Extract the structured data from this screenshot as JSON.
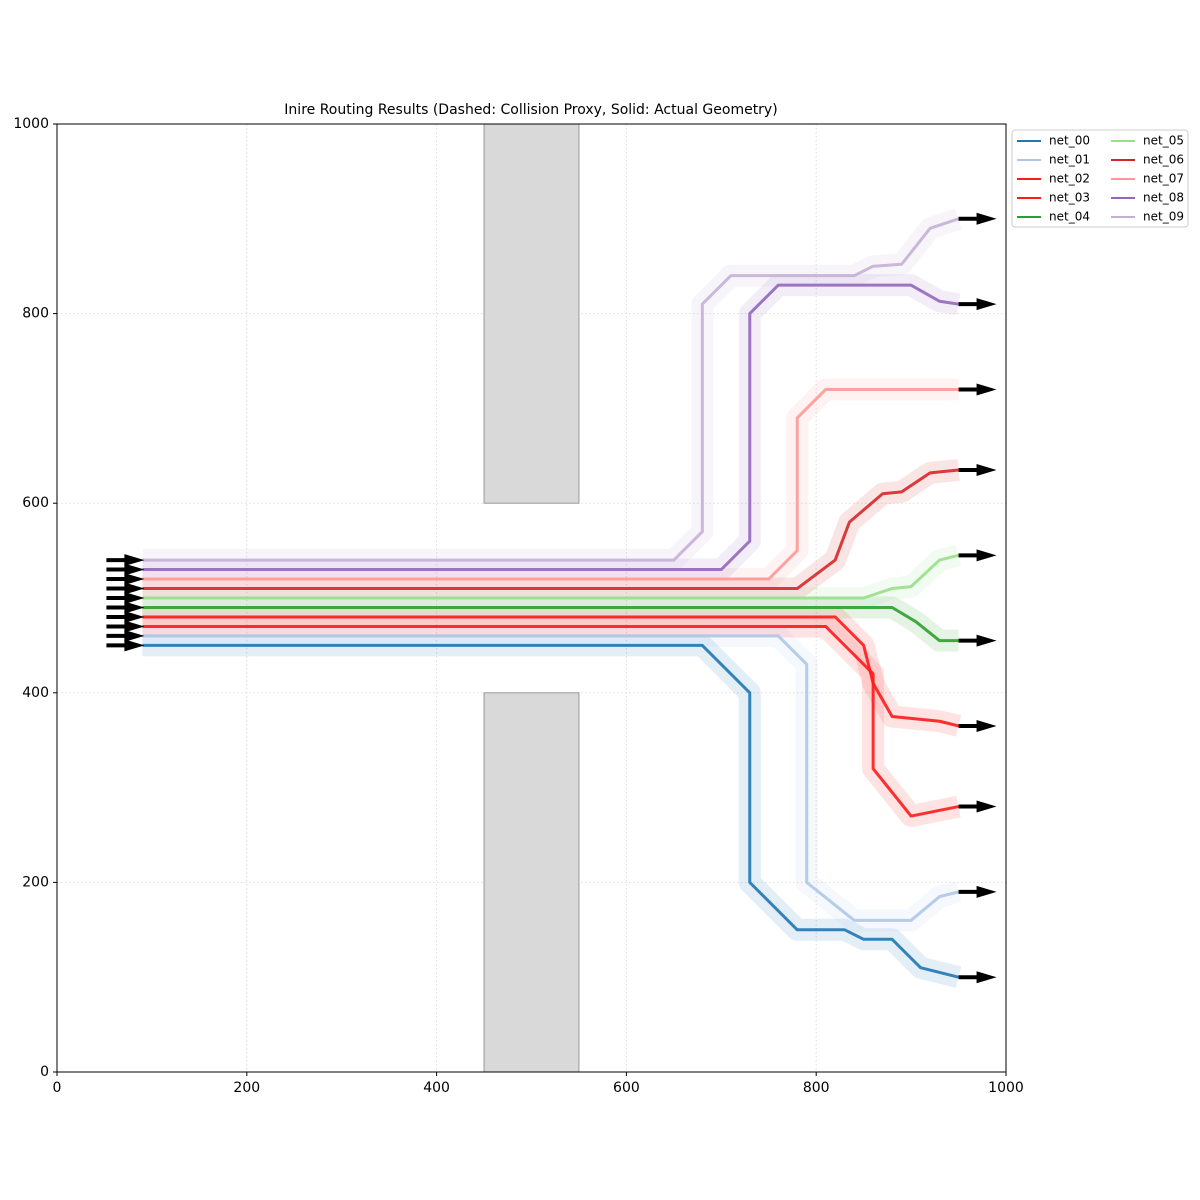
{
  "chart_data": {
    "type": "route",
    "title": "Inire Routing Results (Dashed: Collision Proxy, Solid: Actual Geometry)",
    "xlim": [
      0,
      1000
    ],
    "ylim": [
      0,
      1000
    ],
    "xticks": [
      0,
      200,
      400,
      600,
      800,
      1000
    ],
    "yticks": [
      0,
      200,
      400,
      600,
      800,
      1000
    ],
    "grid": true,
    "legend": "outside-right",
    "obstacle_color": "#d9d9d9",
    "obstacles": [
      {
        "x": [
          450,
          550
        ],
        "y": [
          600,
          1000
        ]
      },
      {
        "x": [
          450,
          550
        ],
        "y": [
          0,
          400
        ]
      }
    ],
    "series": [
      {
        "name": "net_00",
        "color": "#1f77b4",
        "x": [
          90,
          680,
          730,
          730,
          780,
          830,
          850,
          880,
          910,
          950
        ],
        "y": [
          450,
          450,
          400,
          200,
          150,
          150,
          140,
          140,
          110,
          100
        ]
      },
      {
        "name": "net_01",
        "color": "#aec7e8",
        "x": [
          90,
          760,
          790,
          790,
          840,
          900,
          930,
          950
        ],
        "y": [
          460,
          460,
          430,
          200,
          160,
          160,
          185,
          190
        ]
      },
      {
        "name": "net_02",
        "color": "#ff1a1a",
        "x": [
          90,
          810,
          860,
          860,
          900,
          950
        ],
        "y": [
          470,
          470,
          420,
          320,
          270,
          280
        ]
      },
      {
        "name": "net_03",
        "color": "#ff1a1a",
        "x": [
          90,
          820,
          850,
          860,
          880,
          930,
          950
        ],
        "y": [
          480,
          480,
          450,
          410,
          375,
          370,
          365
        ]
      },
      {
        "name": "net_04",
        "color": "#2ca02c",
        "x": [
          90,
          880,
          905,
          930,
          950
        ],
        "y": [
          490,
          490,
          475,
          455,
          455
        ]
      },
      {
        "name": "net_05",
        "color": "#98df8a",
        "x": [
          90,
          850,
          880,
          900,
          930,
          950
        ],
        "y": [
          500,
          500,
          510,
          512,
          540,
          545
        ]
      },
      {
        "name": "net_06",
        "color": "#d62728",
        "x": [
          90,
          780,
          820,
          835,
          870,
          890,
          920,
          950
        ],
        "y": [
          510,
          510,
          540,
          580,
          610,
          612,
          632,
          635
        ]
      },
      {
        "name": "net_07",
        "color": "#ff9896",
        "x": [
          90,
          750,
          780,
          780,
          810,
          950
        ],
        "y": [
          520,
          520,
          550,
          690,
          720,
          720
        ]
      },
      {
        "name": "net_08",
        "color": "#9467bd",
        "x": [
          90,
          700,
          730,
          730,
          760,
          900,
          930,
          950
        ],
        "y": [
          530,
          530,
          560,
          800,
          830,
          830,
          813,
          810
        ]
      },
      {
        "name": "net_09",
        "color": "#c5b0d5",
        "x": [
          90,
          650,
          680,
          680,
          710,
          840,
          860,
          890,
          920,
          950
        ],
        "y": [
          540,
          540,
          570,
          810,
          840,
          840,
          850,
          852,
          890,
          900
        ]
      }
    ]
  }
}
